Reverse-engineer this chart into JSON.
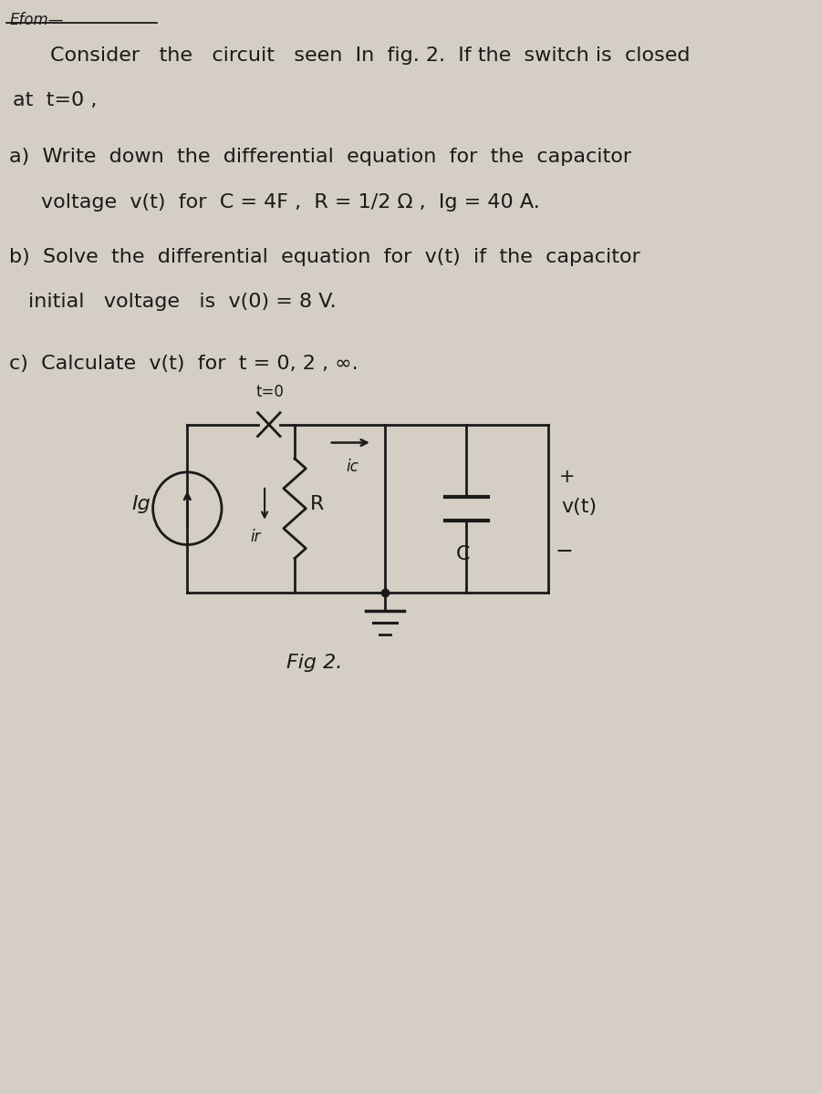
{
  "bg_color": "#d4cec4",
  "text_color": "#1a1a1a",
  "line1a": "Consider  the  circuit  seen  In  fig. 2.  If the  switch is  closed",
  "line1b": "at  t=0 ,",
  "line2a": "a)  Write  down  the  differential  equation  for  the  capacitor",
  "line2b": "voltage  v(t)  for  C = 4F ,  R = 1/2 Ω ,  Ig = 40 A.",
  "line3a": "b)  Solve  the  differential  equation  for  v(t)  if  the  capacitor",
  "line3b": "initial   voltage   is  v(0) = 8 V.",
  "line4": "c)  Calculate  v(t)  for  t = 0, 2 , ∞.",
  "fig_label": "Fig 2.",
  "font_size": 16
}
